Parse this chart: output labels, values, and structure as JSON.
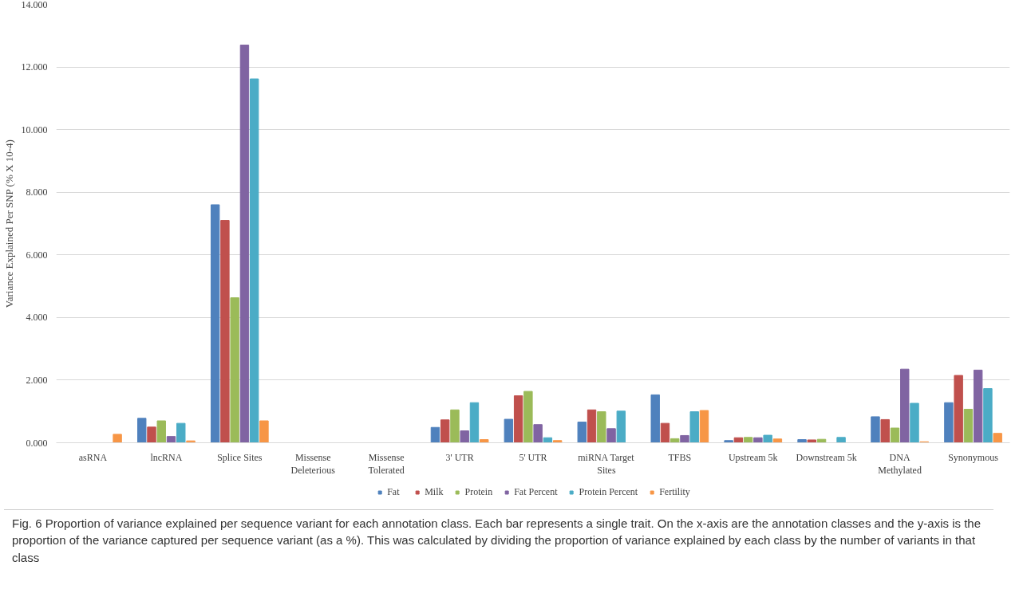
{
  "chart_data": {
    "type": "bar",
    "ylabel": "Variance Explained Per SNP (% X 10-4)",
    "categories": [
      "asRNA",
      "lncRNA",
      "Splice Sites",
      "Missense Deleterious",
      "Missense Tolerated",
      "3' UTR",
      "5' UTR",
      "miRNA Target Sites",
      "TFBS",
      "Upstream 5k",
      "Downstream 5k",
      "DNA Methylated",
      "Synonymous"
    ],
    "series": [
      {
        "name": "Fat",
        "color": "#4f81bd",
        "values": [
          0,
          0.78,
          7.6,
          0,
          0,
          0.49,
          0.75,
          0.66,
          1.53,
          0.07,
          0.1,
          0.83,
          1.28
        ]
      },
      {
        "name": "Milk",
        "color": "#c0504d",
        "values": [
          0,
          0.5,
          7.1,
          0,
          0,
          0.73,
          1.5,
          1.05,
          0.62,
          0.16,
          0.09,
          0.74,
          2.15
        ]
      },
      {
        "name": "Protein",
        "color": "#9bbb59",
        "values": [
          0,
          0.7,
          4.63,
          0,
          0,
          1.05,
          1.64,
          0.99,
          0.13,
          0.17,
          0.11,
          0.47,
          1.07
        ]
      },
      {
        "name": "Fat Percent",
        "color": "#8064a2",
        "values": [
          0,
          0.2,
          12.7,
          0,
          0,
          0.38,
          0.58,
          0.45,
          0.23,
          0.16,
          0,
          2.35,
          2.32
        ]
      },
      {
        "name": "Protein Percent",
        "color": "#4bacc6",
        "values": [
          0,
          0.62,
          11.62,
          0,
          0,
          1.28,
          0.16,
          1.01,
          0.99,
          0.24,
          0.17,
          1.26,
          1.73
        ]
      },
      {
        "name": "Fertility",
        "color": "#f79646",
        "values": [
          0.27,
          0.06,
          0.7,
          0,
          0,
          0.1,
          0.07,
          0,
          1.03,
          0.12,
          0,
          0.03,
          0.3
        ]
      }
    ],
    "ylim": [
      0,
      14
    ],
    "yticks": [
      {
        "value": 0,
        "label": "0.000"
      },
      {
        "value": 2,
        "label": "2.000"
      },
      {
        "value": 4,
        "label": "4.000"
      },
      {
        "value": 6,
        "label": "6.000"
      },
      {
        "value": 8,
        "label": "8.000"
      },
      {
        "value": 10,
        "label": "10.000"
      },
      {
        "value": 12,
        "label": "12.000"
      },
      {
        "value": 14,
        "label": "14.000"
      }
    ],
    "grid": "y",
    "legend": "bottom",
    "annotations": [
      "Fig. 6 Proportion of variance explained per sequence variant for each annotation class. Each bar represents a single trait. On the x-axis are the annotation classes and the y-axis is the proportion of the variance captured per sequence variant (as a %). This was calculated by dividing the proportion of variance explained by each class by the number of variants in that class"
    ]
  }
}
